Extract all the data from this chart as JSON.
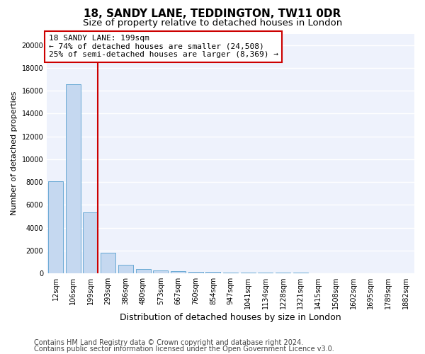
{
  "title1": "18, SANDY LANE, TEDDINGTON, TW11 0DR",
  "title2": "Size of property relative to detached houses in London",
  "xlabel": "Distribution of detached houses by size in London",
  "ylabel": "Number of detached properties",
  "bar_color": "#c5d8f0",
  "bar_edge_color": "#6aaad4",
  "red_line_color": "#cc0000",
  "annotation_box_color": "#cc0000",
  "annotation_line1": "18 SANDY LANE: 199sqm",
  "annotation_line2": "← 74% of detached houses are smaller (24,508)",
  "annotation_line3": "25% of semi-detached houses are larger (8,369) →",
  "footer1": "Contains HM Land Registry data © Crown copyright and database right 2024.",
  "footer2": "Contains public sector information licensed under the Open Government Licence v3.0.",
  "categories": [
    "12sqm",
    "106sqm",
    "199sqm",
    "293sqm",
    "386sqm",
    "480sqm",
    "573sqm",
    "667sqm",
    "760sqm",
    "854sqm",
    "947sqm",
    "1041sqm",
    "1134sqm",
    "1228sqm",
    "1321sqm",
    "1415sqm",
    "1508sqm",
    "1602sqm",
    "1695sqm",
    "1789sqm",
    "1882sqm"
  ],
  "values": [
    8050,
    16550,
    5320,
    1820,
    720,
    370,
    270,
    195,
    155,
    110,
    90,
    70,
    55,
    50,
    40,
    35,
    28,
    22,
    18,
    14,
    10
  ],
  "red_line_index": 2,
  "ylim": [
    0,
    21000
  ],
  "yticks": [
    0,
    2000,
    4000,
    6000,
    8000,
    10000,
    12000,
    14000,
    16000,
    18000,
    20000
  ],
  "bg_color": "#eef2fc",
  "grid_color": "#ffffff",
  "title1_fontsize": 11,
  "title2_fontsize": 9.5,
  "annotation_fontsize": 8,
  "ylabel_fontsize": 8,
  "xlabel_fontsize": 9,
  "tick_fontsize": 7,
  "footer_fontsize": 7
}
